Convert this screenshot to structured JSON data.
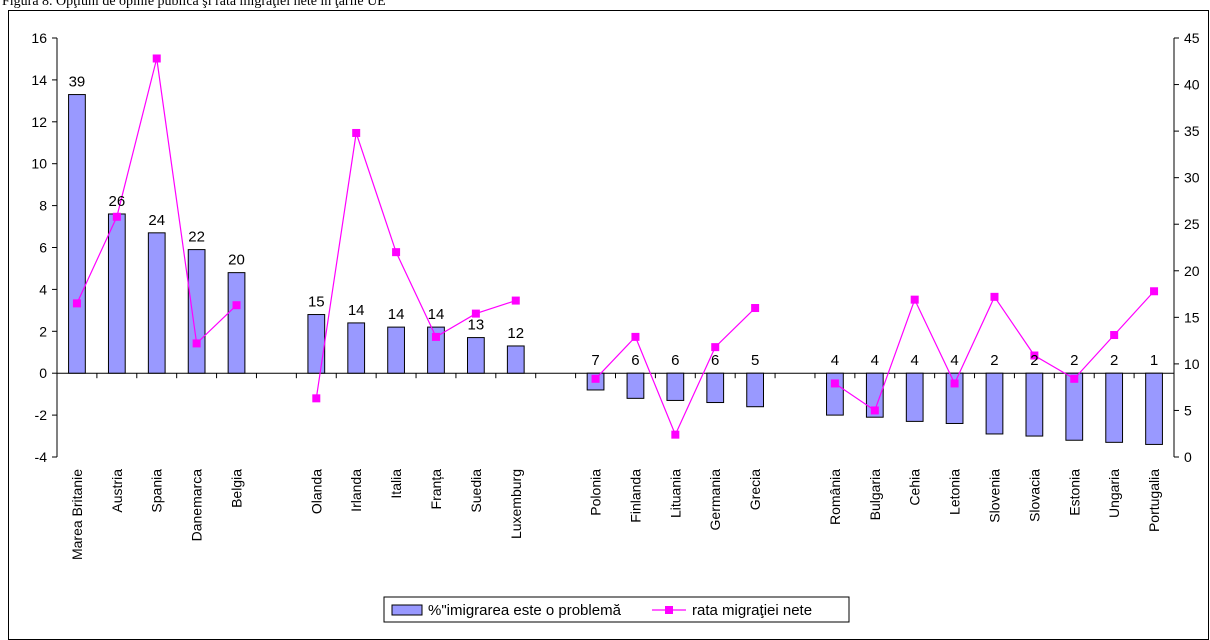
{
  "caption": "Figura 8. Opţiuni de opinie publică şi rata migraţiei nete în ţările UE",
  "colors": {
    "bar_fill": "#9999ff",
    "bar_stroke": "#000000",
    "line": "#ff00ff",
    "axis": "#000000"
  },
  "chart_data": {
    "type": "bar",
    "title": "",
    "xlabel": "",
    "ylabel": "",
    "ylim_left": [
      -4,
      16
    ],
    "ylim_right": [
      0,
      45
    ],
    "left_ticks": [
      -4,
      -2,
      0,
      2,
      4,
      6,
      8,
      10,
      12,
      14,
      16
    ],
    "right_ticks": [
      0,
      5,
      10,
      15,
      20,
      25,
      30,
      35,
      40,
      45
    ],
    "grid": false,
    "legend_position": "bottom",
    "categories": [
      "Marea Britanie",
      "Austria",
      "Spania",
      "Danemarca",
      "Belgia",
      "",
      "Olanda",
      "Irlanda",
      "Italia",
      "Franța",
      "Suedia",
      "Luxemburg",
      "",
      "Polonia",
      "Finlanda",
      "Lituania",
      "Germania",
      "Grecia",
      "",
      "România",
      "Bulgaria",
      "Cehia",
      "Letonia",
      "Slovenia",
      "Slovacia",
      "Estonia",
      "Ungaria",
      "Portugalia"
    ],
    "series": [
      {
        "name": "%\"imigrarea este o problemă",
        "kind": "bar",
        "axis": "left",
        "values": [
          13.3,
          7.6,
          6.7,
          5.9,
          4.8,
          null,
          2.8,
          2.4,
          2.2,
          2.2,
          1.7,
          1.3,
          null,
          -0.8,
          -1.2,
          -1.3,
          -1.4,
          -1.6,
          null,
          -2.0,
          -2.1,
          -2.3,
          -2.4,
          -2.9,
          -3.0,
          -3.2,
          -3.3,
          -3.4
        ],
        "labels": [
          "39",
          "26",
          "24",
          "22",
          "20",
          "",
          "15",
          "14",
          "14",
          "14",
          "13",
          "12",
          "",
          "7",
          "6",
          "6",
          "6",
          "5",
          "",
          "4",
          "4",
          "4",
          "4",
          "2",
          "2",
          "2",
          "2",
          "1"
        ]
      },
      {
        "name": "rata migraţiei nete",
        "kind": "line",
        "axis": "right",
        "values": [
          16.5,
          25.8,
          42.8,
          12.2,
          16.3,
          null,
          6.3,
          34.8,
          22.0,
          12.9,
          15.4,
          16.8,
          null,
          8.4,
          12.9,
          2.4,
          11.8,
          16.0,
          null,
          7.9,
          5.0,
          16.9,
          7.9,
          17.2,
          10.9,
          8.4,
          13.1,
          17.8
        ]
      }
    ]
  }
}
